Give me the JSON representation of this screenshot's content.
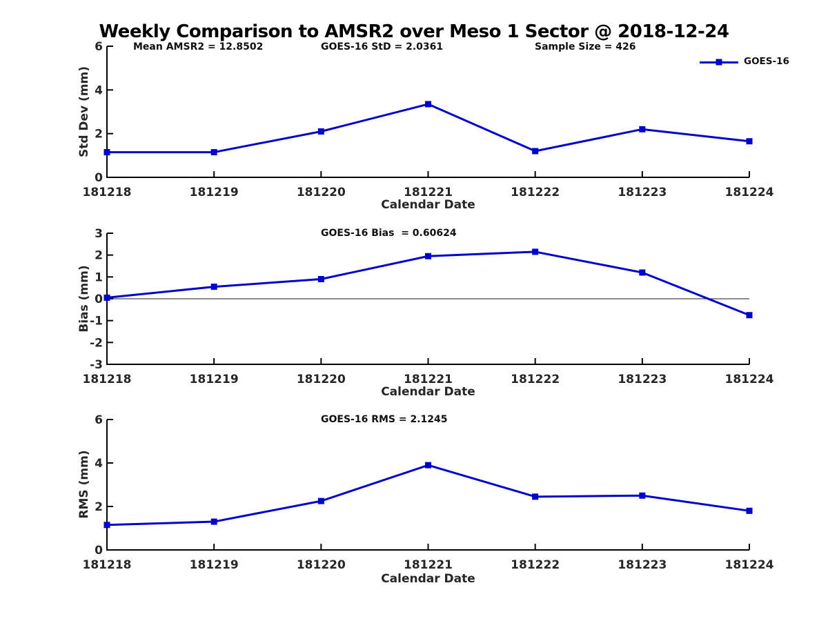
{
  "title": "Weekly Comparison to AMSR2 over Meso 1 Sector @ 2018-12-24",
  "legend": {
    "label": "GOES-16"
  },
  "colors": {
    "series_blue": "#0000CD",
    "axis": "#000000",
    "tick_text": "#262626"
  },
  "chart_data": [
    {
      "type": "line",
      "name": "std_dev",
      "ylabel": "Std Dev (mm)",
      "xlabel": "Calendar Date",
      "categories": [
        "181218",
        "181219",
        "181220",
        "181221",
        "181222",
        "181223",
        "181224"
      ],
      "series": [
        {
          "name": "GOES-16",
          "color": "#0000CD",
          "marker": "square",
          "values": [
            1.15,
            1.15,
            2.1,
            3.35,
            1.2,
            2.2,
            1.65
          ]
        }
      ],
      "ylim": [
        0,
        6
      ],
      "yticks": [
        0,
        2,
        4,
        6
      ],
      "grid": false,
      "zero_line": false,
      "legend_position": "top-right",
      "annotations": [
        {
          "text": "Mean AMSR2 = 12.8502"
        },
        {
          "text": "GOES-16 StD = 2.0361"
        },
        {
          "text": "Sample Size = 426"
        }
      ]
    },
    {
      "type": "line",
      "name": "bias",
      "ylabel": "Bias (mm)",
      "xlabel": "Calendar Date",
      "categories": [
        "181218",
        "181219",
        "181220",
        "181221",
        "181222",
        "181223",
        "181224"
      ],
      "series": [
        {
          "name": "GOES-16",
          "color": "#0000CD",
          "marker": "square",
          "values": [
            0.05,
            0.55,
            0.9,
            1.95,
            2.15,
            1.2,
            -0.75
          ]
        }
      ],
      "ylim": [
        -3,
        3
      ],
      "yticks": [
        3,
        2,
        1,
        0,
        -1,
        -2,
        -3
      ],
      "grid": false,
      "zero_line": true,
      "legend_position": "none",
      "annotations": [
        {
          "text": "GOES-16 Bias  = 0.60624"
        }
      ]
    },
    {
      "type": "line",
      "name": "rms",
      "ylabel": "RMS (mm)",
      "xlabel": "Calendar Date",
      "categories": [
        "181218",
        "181219",
        "181220",
        "181221",
        "181222",
        "181223",
        "181224"
      ],
      "series": [
        {
          "name": "GOES-16",
          "color": "#0000CD",
          "marker": "square",
          "values": [
            1.15,
            1.3,
            2.25,
            3.9,
            2.45,
            2.5,
            1.8
          ]
        }
      ],
      "ylim": [
        0,
        6
      ],
      "yticks": [
        0,
        2,
        4,
        6
      ],
      "grid": false,
      "zero_line": false,
      "legend_position": "none",
      "annotations": [
        {
          "text": "GOES-16 RMS = 2.1245"
        }
      ]
    }
  ]
}
